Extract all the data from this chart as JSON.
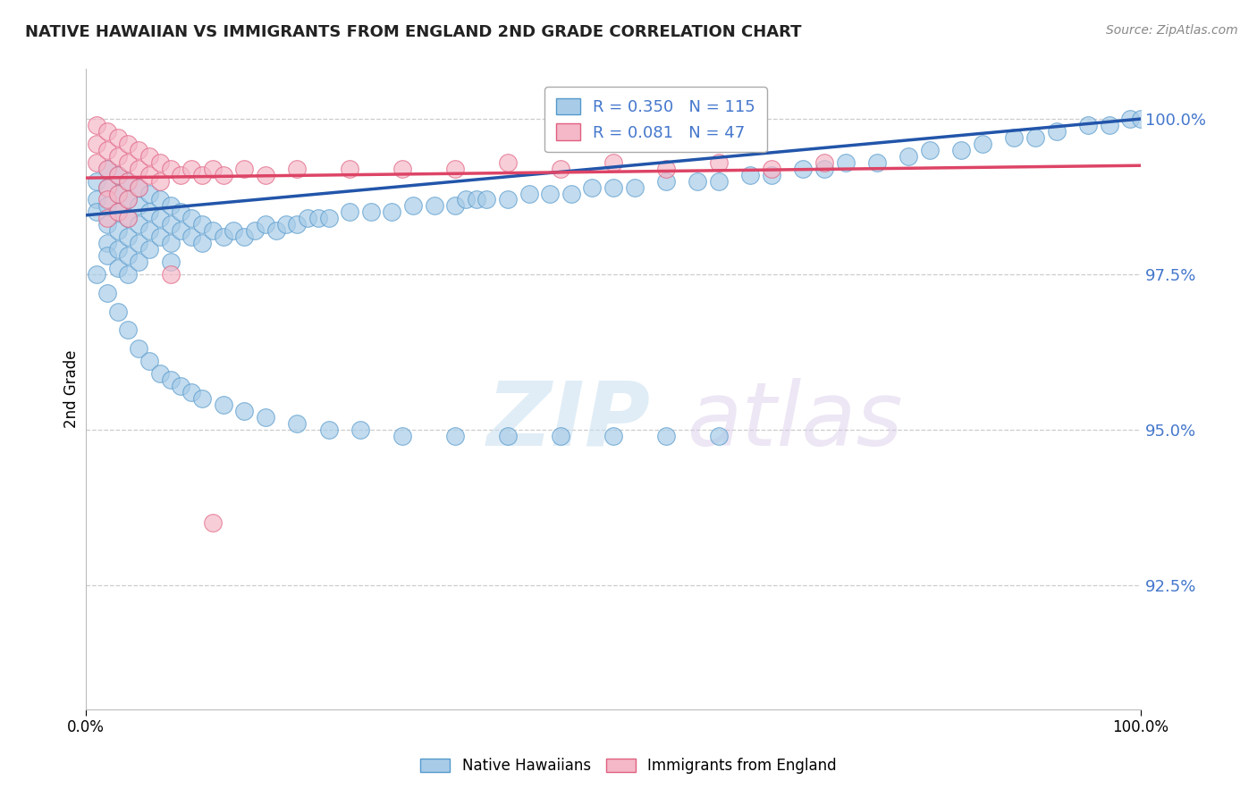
{
  "title": "NATIVE HAWAIIAN VS IMMIGRANTS FROM ENGLAND 2ND GRADE CORRELATION CHART",
  "source": "Source: ZipAtlas.com",
  "ylabel": "2nd Grade",
  "xlim": [
    0.0,
    1.0
  ],
  "ylim": [
    0.905,
    1.008
  ],
  "yticks": [
    0.925,
    0.95,
    0.975,
    1.0
  ],
  "ytick_labels": [
    "92.5%",
    "95.0%",
    "97.5%",
    "100.0%"
  ],
  "xticks": [
    0.0,
    1.0
  ],
  "xtick_labels": [
    "0.0%",
    "100.0%"
  ],
  "legend_entries": [
    "Native Hawaiians",
    "Immigrants from England"
  ],
  "blue_color": "#a8cce8",
  "pink_color": "#f4b8c8",
  "blue_edge_color": "#5599cc",
  "pink_edge_color": "#e06080",
  "blue_line_color": "#2255aa",
  "pink_line_color": "#dd4466",
  "r_blue": 0.35,
  "n_blue": 115,
  "r_pink": 0.081,
  "n_pink": 47,
  "blue_line_x0": 0.0,
  "blue_line_y0": 0.9845,
  "blue_line_x1": 1.0,
  "blue_line_y1": 1.0,
  "pink_line_x0": 0.0,
  "pink_line_y0": 0.9905,
  "pink_line_x1": 1.0,
  "pink_line_y1": 0.9925,
  "blue_scatter_x": [
    0.01,
    0.01,
    0.01,
    0.02,
    0.02,
    0.02,
    0.02,
    0.02,
    0.02,
    0.03,
    0.03,
    0.03,
    0.03,
    0.03,
    0.03,
    0.04,
    0.04,
    0.04,
    0.04,
    0.04,
    0.04,
    0.05,
    0.05,
    0.05,
    0.05,
    0.05,
    0.06,
    0.06,
    0.06,
    0.06,
    0.07,
    0.07,
    0.07,
    0.08,
    0.08,
    0.08,
    0.08,
    0.09,
    0.09,
    0.1,
    0.1,
    0.11,
    0.11,
    0.12,
    0.13,
    0.14,
    0.15,
    0.16,
    0.17,
    0.18,
    0.19,
    0.2,
    0.21,
    0.22,
    0.23,
    0.25,
    0.27,
    0.29,
    0.31,
    0.33,
    0.35,
    0.36,
    0.37,
    0.38,
    0.4,
    0.42,
    0.44,
    0.46,
    0.48,
    0.5,
    0.52,
    0.55,
    0.58,
    0.6,
    0.63,
    0.65,
    0.68,
    0.7,
    0.72,
    0.75,
    0.78,
    0.8,
    0.83,
    0.85,
    0.88,
    0.9,
    0.92,
    0.95,
    0.97,
    0.99,
    1.0,
    0.01,
    0.02,
    0.03,
    0.04,
    0.05,
    0.06,
    0.07,
    0.08,
    0.09,
    0.1,
    0.11,
    0.13,
    0.15,
    0.17,
    0.2,
    0.23,
    0.26,
    0.3,
    0.35,
    0.4,
    0.45,
    0.5,
    0.55,
    0.6
  ],
  "blue_scatter_y": [
    0.99,
    0.987,
    0.985,
    0.992,
    0.989,
    0.986,
    0.983,
    0.98,
    0.978,
    0.991,
    0.988,
    0.985,
    0.982,
    0.979,
    0.976,
    0.99,
    0.987,
    0.984,
    0.981,
    0.978,
    0.975,
    0.989,
    0.986,
    0.983,
    0.98,
    0.977,
    0.988,
    0.985,
    0.982,
    0.979,
    0.987,
    0.984,
    0.981,
    0.986,
    0.983,
    0.98,
    0.977,
    0.985,
    0.982,
    0.984,
    0.981,
    0.983,
    0.98,
    0.982,
    0.981,
    0.982,
    0.981,
    0.982,
    0.983,
    0.982,
    0.983,
    0.983,
    0.984,
    0.984,
    0.984,
    0.985,
    0.985,
    0.985,
    0.986,
    0.986,
    0.986,
    0.987,
    0.987,
    0.987,
    0.987,
    0.988,
    0.988,
    0.988,
    0.989,
    0.989,
    0.989,
    0.99,
    0.99,
    0.99,
    0.991,
    0.991,
    0.992,
    0.992,
    0.993,
    0.993,
    0.994,
    0.995,
    0.995,
    0.996,
    0.997,
    0.997,
    0.998,
    0.999,
    0.999,
    1.0,
    1.0,
    0.975,
    0.972,
    0.969,
    0.966,
    0.963,
    0.961,
    0.959,
    0.958,
    0.957,
    0.956,
    0.955,
    0.954,
    0.953,
    0.952,
    0.951,
    0.95,
    0.95,
    0.949,
    0.949,
    0.949,
    0.949,
    0.949,
    0.949,
    0.949
  ],
  "pink_scatter_x": [
    0.01,
    0.01,
    0.01,
    0.02,
    0.02,
    0.02,
    0.02,
    0.02,
    0.02,
    0.03,
    0.03,
    0.03,
    0.03,
    0.03,
    0.04,
    0.04,
    0.04,
    0.04,
    0.04,
    0.05,
    0.05,
    0.05,
    0.06,
    0.06,
    0.07,
    0.07,
    0.08,
    0.09,
    0.1,
    0.11,
    0.12,
    0.13,
    0.15,
    0.17,
    0.2,
    0.25,
    0.3,
    0.35,
    0.4,
    0.45,
    0.5,
    0.55,
    0.6,
    0.65,
    0.7,
    0.08,
    0.12
  ],
  "pink_scatter_y": [
    0.999,
    0.996,
    0.993,
    0.998,
    0.995,
    0.992,
    0.989,
    0.987,
    0.984,
    0.997,
    0.994,
    0.991,
    0.988,
    0.985,
    0.996,
    0.993,
    0.99,
    0.987,
    0.984,
    0.995,
    0.992,
    0.989,
    0.994,
    0.991,
    0.993,
    0.99,
    0.992,
    0.991,
    0.992,
    0.991,
    0.992,
    0.991,
    0.992,
    0.991,
    0.992,
    0.992,
    0.992,
    0.992,
    0.993,
    0.992,
    0.993,
    0.992,
    0.993,
    0.992,
    0.993,
    0.975,
    0.935
  ],
  "watermark_zip": "ZIP",
  "watermark_atlas": "atlas",
  "background_color": "#ffffff",
  "grid_color": "#cccccc",
  "ytick_color": "#4477cc",
  "legend_box_color": "#dddddd"
}
